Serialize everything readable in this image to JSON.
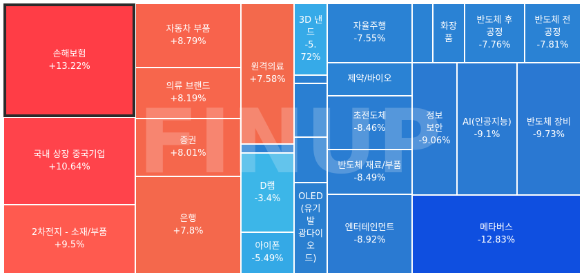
{
  "chart_data": {
    "type": "treemap",
    "watermark": "FINUP",
    "selected": "손해보험",
    "tiles": [
      {
        "name": "손해보험",
        "value": "+13.22%",
        "color": "#ff3d46"
      },
      {
        "name": "국내 상장 중국기업",
        "value": "+10.64%",
        "color": "#ff434b"
      },
      {
        "name": "2차전지 - 소재/부품",
        "value": "+9.5%",
        "color": "#ff5a4f"
      },
      {
        "name": "자동차 부품",
        "value": "+8.79%",
        "color": "#f8634c"
      },
      {
        "name": "의류 브랜드",
        "value": "+8.19%",
        "color": "#f7664c"
      },
      {
        "name": "증권",
        "value": "+8.01%",
        "color": "#f5674c"
      },
      {
        "name": "은행",
        "value": "+7.8%",
        "color": "#f4684c"
      },
      {
        "name": "원격의료",
        "value": "+7.58%",
        "color": "#f3694c"
      },
      {
        "name": "D램",
        "value": "-3.4%",
        "color": "#3cb6e8"
      },
      {
        "name": "아이폰",
        "value": "-5.49%",
        "color": "#34a9e6"
      },
      {
        "name": "3D 낸드",
        "value": "-5.72%",
        "color": "#36aae8"
      },
      {
        "name": "OLED(유기발광다이오드)",
        "value": "",
        "color": "#2a7fd0"
      },
      {
        "name": "자율주행",
        "value": "-7.55%",
        "color": "#2a82d4"
      },
      {
        "name": "제약/바이오",
        "value": "",
        "color": "#2a82d4"
      },
      {
        "name": "초전도체",
        "value": "-8.46%",
        "color": "#2a7dd2"
      },
      {
        "name": "반도체 재료/부품",
        "value": "-8.49%",
        "color": "#2a7dd2"
      },
      {
        "name": "엔터테인먼트",
        "value": "-8.92%",
        "color": "#2a7ad2"
      },
      {
        "name": "화장품",
        "value": "",
        "color": "#2a82d4"
      },
      {
        "name": "반도체 후공정",
        "value": "-7.76%",
        "color": "#2a82d4"
      },
      {
        "name": "반도체 전공정",
        "value": "-7.81%",
        "color": "#2a82d4"
      },
      {
        "name": "정보 보안",
        "value": "-9.06%",
        "color": "#2a7ad2"
      },
      {
        "name": "AI(인공지능)",
        "value": "-9.1%",
        "color": "#2a7ad2"
      },
      {
        "name": "반도체 장비",
        "value": "-9.73%",
        "color": "#2a78d2"
      },
      {
        "name": "메타버스",
        "value": "-12.83%",
        "color": "#0f4fe0"
      },
      {
        "name": "",
        "value": "",
        "color": "#2a82d4"
      },
      {
        "name": "",
        "value": "",
        "color": "#2a7fd2"
      },
      {
        "name": "",
        "value": "",
        "color": "#2a7fd2"
      },
      {
        "name": "",
        "value": "",
        "color": "#2a7fd2"
      },
      {
        "name": "",
        "value": "",
        "color": "#2a7fd2"
      }
    ]
  }
}
